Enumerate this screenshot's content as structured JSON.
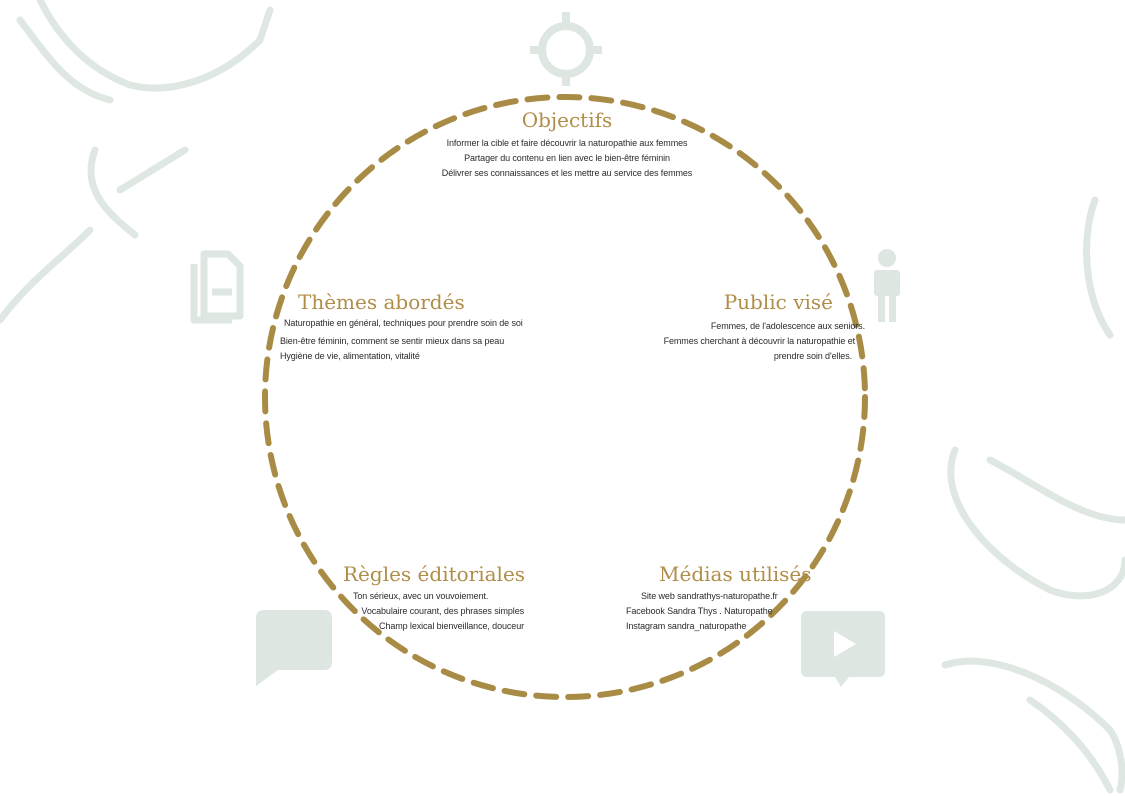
{
  "colors": {
    "accent": "#a88b45",
    "icon": "#dde6e1",
    "text": "#2b2b2b"
  },
  "objectifs": {
    "title": "Objectifs",
    "icon": "target-icon",
    "lines": [
      "Informer la cible et faire découvrir la naturopathie aux femmes",
      "Partager du contenu en lien avec le bien-être féminin",
      "Délivrer ses connaissances et les mettre au service des femmes"
    ]
  },
  "themes": {
    "title": "Thèmes abordés",
    "icon": "document-icon",
    "lines": [
      "Naturopathie en général, techniques pour prendre soin de soi",
      "Bien-être féminin, comment se sentir mieux dans sa peau",
      "Hygiène de vie, alimentation, vitalité"
    ]
  },
  "public": {
    "title": "Public visé",
    "icon": "person-icon",
    "lines": [
      "Femmes, de l'adolescence aux seniors.",
      "Femmes cherchant à découvrir la naturopathie et",
      "prendre soin d'elles."
    ]
  },
  "regles": {
    "title": "Règles éditoriales",
    "icon": "chat-bubble-icon",
    "lines": [
      "Ton sérieux, avec un vouvoiement.",
      "Vocabulaire courant, des phrases simples",
      "Champ lexical bienveillance, douceur"
    ]
  },
  "medias": {
    "title": "Médias utilisés",
    "icon": "video-play-icon",
    "lines": [
      "Site web sandrathys-naturopathe.fr",
      "Facebook Sandra Thys . Naturopathe",
      "Instagram sandra_naturopathe"
    ]
  }
}
